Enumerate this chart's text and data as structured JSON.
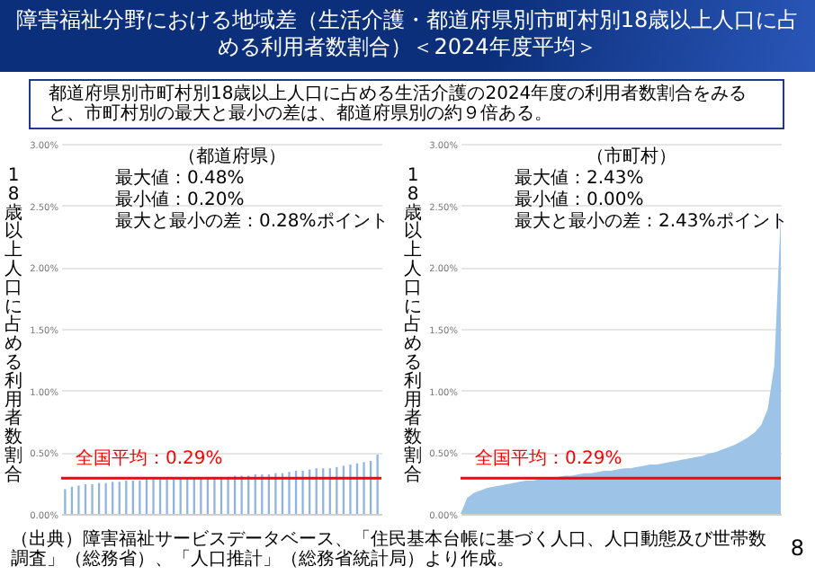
{
  "chart_data": [
    {
      "type": "bar",
      "title": "障害福祉分野における地域差（生活介護・都道府県別市町村別18歳以上人口に占める利用者数割合）＜2024年度平均＞",
      "subtitle": "都道府県別市町村別18歳以上人口に占める生活介護の2024年度の利用者数割合をみると、市町村別の最大と最小の差は、都道府県別の約９倍ある。",
      "ylabel": "18歳以上人口に占める利用者数割合",
      "categories": [
        null,
        null,
        null,
        null,
        null,
        null,
        null,
        null,
        null,
        null,
        null,
        null,
        null,
        null,
        null,
        null,
        null,
        null,
        null,
        null,
        null,
        null,
        null,
        null,
        null,
        null,
        null,
        null,
        null,
        null,
        null,
        null,
        null,
        null,
        null,
        null,
        null,
        null,
        null,
        null,
        null,
        null,
        null,
        null,
        null,
        null,
        null
      ],
      "values": [
        0.2,
        0.22,
        0.23,
        0.24,
        0.24,
        0.25,
        0.25,
        0.26,
        0.26,
        0.27,
        0.27,
        0.27,
        0.28,
        0.28,
        0.28,
        0.28,
        0.28,
        0.29,
        0.29,
        0.29,
        0.29,
        0.3,
        0.3,
        0.3,
        0.3,
        0.31,
        0.31,
        0.31,
        0.32,
        0.32,
        0.32,
        0.33,
        0.33,
        0.34,
        0.35,
        0.35,
        0.36,
        0.37,
        0.37,
        0.37,
        0.38,
        0.39,
        0.4,
        0.41,
        0.42,
        0.43,
        0.48
      ],
      "color": "#8fb4e3",
      "ylim": [
        0,
        3
      ],
      "yticks": [
        {
          "value": 0,
          "label": "0.00%"
        },
        {
          "value": 0.5,
          "label": "0.50%"
        },
        {
          "value": 1,
          "label": "1.00%"
        },
        {
          "value": 1.5,
          "label": "1.50%"
        },
        {
          "value": 2,
          "label": "2.00%"
        },
        {
          "value": 2.5,
          "label": "2.50%"
        },
        {
          "value": 3,
          "label": "3.00%"
        }
      ],
      "grid": "y",
      "ref_lines": [
        {
          "axis": "y",
          "value": 0.29,
          "label": "全国平均：0.29%",
          "color": "#ff0000"
        }
      ],
      "annotations": [
        "（都道府県）",
        "最大値：0.48%",
        "最小値：0.20%",
        "最大と最小の差：0.28%ポイント",
        "（出典）障害福祉サービスデータベース、「住民基本台帳に基づく人口、人口動態及び世帯数調査」（総務省）、「人口推計」（総務省統計局）より作成。"
      ]
    },
    {
      "type": "area",
      "ylabel": "18歳以上人口に占める利用者数割合",
      "categories": [
        null,
        null,
        null,
        null,
        null,
        null,
        null,
        null,
        null,
        null,
        null,
        null,
        null,
        null,
        null,
        null,
        null,
        null,
        null,
        null,
        null,
        null,
        null,
        null,
        null,
        null,
        null,
        null,
        null,
        null,
        null,
        null,
        null,
        null,
        null,
        null,
        null,
        null,
        null,
        null,
        null,
        null,
        null,
        null,
        null,
        null,
        null,
        null,
        null,
        null
      ],
      "values": [
        0.0,
        0.13,
        0.17,
        0.19,
        0.21,
        0.22,
        0.23,
        0.24,
        0.25,
        0.26,
        0.27,
        0.27,
        0.28,
        0.29,
        0.29,
        0.3,
        0.31,
        0.31,
        0.32,
        0.33,
        0.33,
        0.34,
        0.35,
        0.35,
        0.36,
        0.37,
        0.37,
        0.38,
        0.39,
        0.4,
        0.4,
        0.41,
        0.42,
        0.43,
        0.44,
        0.45,
        0.46,
        0.47,
        0.49,
        0.5,
        0.52,
        0.54,
        0.56,
        0.59,
        0.62,
        0.66,
        0.72,
        0.85,
        1.2,
        2.43
      ],
      "color": "#9dc3e6",
      "ylim": [
        0,
        3
      ],
      "yticks": [
        {
          "value": 0,
          "label": "0.00%"
        },
        {
          "value": 0.5,
          "label": "0.50%"
        },
        {
          "value": 1,
          "label": "1.00%"
        },
        {
          "value": 1.5,
          "label": "1.50%"
        },
        {
          "value": 2,
          "label": "2.00%"
        },
        {
          "value": 2.5,
          "label": "2.50%"
        },
        {
          "value": 3,
          "label": "3.00%"
        }
      ],
      "grid": "y",
      "ref_lines": [
        {
          "axis": "y",
          "value": 0.29,
          "label": "全国平均：0.29%",
          "color": "#ff0000"
        }
      ],
      "annotations": [
        "（市町村）",
        "最大値：2.43%",
        "最小値：0.00%",
        "最大と最小の差：2.43%ポイント",
        "8"
      ]
    }
  ]
}
